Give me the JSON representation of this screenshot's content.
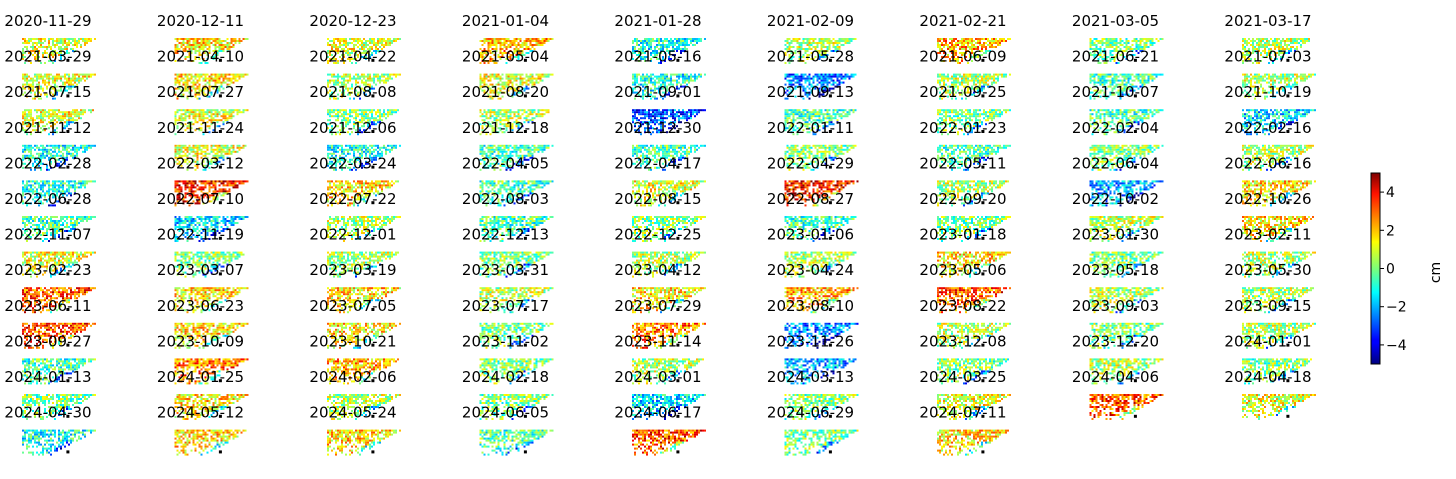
{
  "chart_data": {
    "type": "heatmap",
    "description_type": "small-multiples displacement maps",
    "grid": false,
    "colormap": "jet",
    "colorbar": {
      "label": "cm",
      "range": [
        -5,
        5
      ],
      "ticks": [
        4,
        2,
        0,
        -2,
        -4
      ],
      "tick_labels": [
        "4",
        "2",
        "0",
        "−2",
        "−4"
      ],
      "placement": "right"
    },
    "columns": 9,
    "panels": [
      {
        "date": "2020-11-29",
        "mean_cm": 1.0
      },
      {
        "date": "2020-12-11",
        "mean_cm": 1.5
      },
      {
        "date": "2020-12-23",
        "mean_cm": 1.0
      },
      {
        "date": "2021-01-04",
        "mean_cm": 2.0
      },
      {
        "date": "2021-01-28",
        "mean_cm": -1.0
      },
      {
        "date": "2021-02-09",
        "mean_cm": 0.5
      },
      {
        "date": "2021-02-21",
        "mean_cm": 2.0
      },
      {
        "date": "2021-03-05",
        "mean_cm": 0.0
      },
      {
        "date": "2021-03-17",
        "mean_cm": 0.5
      },
      {
        "date": "2021-03-29",
        "mean_cm": 1.0
      },
      {
        "date": "2021-04-10",
        "mean_cm": 1.5
      },
      {
        "date": "2021-04-22",
        "mean_cm": 0.5
      },
      {
        "date": "2021-05-04",
        "mean_cm": 1.0
      },
      {
        "date": "2021-05-16",
        "mean_cm": -1.0
      },
      {
        "date": "2021-05-28",
        "mean_cm": -2.5
      },
      {
        "date": "2021-06-09",
        "mean_cm": 0.5
      },
      {
        "date": "2021-06-21",
        "mean_cm": -0.5
      },
      {
        "date": "2021-07-03",
        "mean_cm": 0.5
      },
      {
        "date": "2021-07-15",
        "mean_cm": 1.0
      },
      {
        "date": "2021-07-27",
        "mean_cm": 1.0
      },
      {
        "date": "2021-08-08",
        "mean_cm": 0.0
      },
      {
        "date": "2021-08-20",
        "mean_cm": 0.5
      },
      {
        "date": "2021-09-01",
        "mean_cm": -3.0
      },
      {
        "date": "2021-09-13",
        "mean_cm": -0.5
      },
      {
        "date": "2021-09-25",
        "mean_cm": 0.0
      },
      {
        "date": "2021-10-07",
        "mean_cm": -0.5
      },
      {
        "date": "2021-10-19",
        "mean_cm": -1.5
      },
      {
        "date": "2021-11-12",
        "mean_cm": -1.0
      },
      {
        "date": "2021-11-24",
        "mean_cm": 1.0
      },
      {
        "date": "2021-12-06",
        "mean_cm": -1.0
      },
      {
        "date": "2021-12-18",
        "mean_cm": -0.5
      },
      {
        "date": "2021-12-30",
        "mean_cm": -0.5
      },
      {
        "date": "2022-01-11",
        "mean_cm": 0.0
      },
      {
        "date": "2022-01-23",
        "mean_cm": -0.5
      },
      {
        "date": "2022-02-04",
        "mean_cm": 0.0
      },
      {
        "date": "2022-02-16",
        "mean_cm": 0.5
      },
      {
        "date": "2022-02-28",
        "mean_cm": -1.0
      },
      {
        "date": "2022-03-12",
        "mean_cm": 3.5
      },
      {
        "date": "2022-03-24",
        "mean_cm": 1.5
      },
      {
        "date": "2022-04-05",
        "mean_cm": -0.5
      },
      {
        "date": "2022-04-17",
        "mean_cm": 1.0
      },
      {
        "date": "2022-04-29",
        "mean_cm": 3.5
      },
      {
        "date": "2022-05-11",
        "mean_cm": 0.5
      },
      {
        "date": "2022-06-04",
        "mean_cm": -2.0
      },
      {
        "date": "2022-06-16",
        "mean_cm": 1.5
      },
      {
        "date": "2022-06-28",
        "mean_cm": -0.5
      },
      {
        "date": "2022-07-10",
        "mean_cm": -1.5
      },
      {
        "date": "2022-07-22",
        "mean_cm": 0.5
      },
      {
        "date": "2022-08-03",
        "mean_cm": -0.5
      },
      {
        "date": "2022-08-15",
        "mean_cm": 0.0
      },
      {
        "date": "2022-08-27",
        "mean_cm": -0.5
      },
      {
        "date": "2022-09-20",
        "mean_cm": 0.0
      },
      {
        "date": "2022-10-02",
        "mean_cm": 0.5
      },
      {
        "date": "2022-10-26",
        "mean_cm": 1.5
      },
      {
        "date": "2022-11-07",
        "mean_cm": 1.0
      },
      {
        "date": "2022-11-19",
        "mean_cm": 0.0
      },
      {
        "date": "2022-12-01",
        "mean_cm": 0.5
      },
      {
        "date": "2022-12-13",
        "mean_cm": 0.0
      },
      {
        "date": "2022-12-25",
        "mean_cm": 0.5
      },
      {
        "date": "2023-01-06",
        "mean_cm": 0.5
      },
      {
        "date": "2023-01-18",
        "mean_cm": 1.5
      },
      {
        "date": "2023-01-30",
        "mean_cm": 0.0
      },
      {
        "date": "2023-02-11",
        "mean_cm": 0.5
      },
      {
        "date": "2023-02-23",
        "mean_cm": 3.0
      },
      {
        "date": "2023-03-07",
        "mean_cm": 1.5
      },
      {
        "date": "2023-03-19",
        "mean_cm": 1.5
      },
      {
        "date": "2023-03-31",
        "mean_cm": 0.5
      },
      {
        "date": "2023-04-12",
        "mean_cm": 1.5
      },
      {
        "date": "2023-04-24",
        "mean_cm": 2.0
      },
      {
        "date": "2023-05-06",
        "mean_cm": 3.0
      },
      {
        "date": "2023-05-18",
        "mean_cm": 0.5
      },
      {
        "date": "2023-05-30",
        "mean_cm": 0.5
      },
      {
        "date": "2023-06-11",
        "mean_cm": 3.0
      },
      {
        "date": "2023-06-23",
        "mean_cm": 1.5
      },
      {
        "date": "2023-07-05",
        "mean_cm": 1.5
      },
      {
        "date": "2023-07-17",
        "mean_cm": 0.0
      },
      {
        "date": "2023-07-29",
        "mean_cm": 2.5
      },
      {
        "date": "2023-08-10",
        "mean_cm": -2.5
      },
      {
        "date": "2023-08-22",
        "mean_cm": 0.5
      },
      {
        "date": "2023-09-03",
        "mean_cm": 0.0
      },
      {
        "date": "2023-09-15",
        "mean_cm": 0.5
      },
      {
        "date": "2023-09-27",
        "mean_cm": -0.5
      },
      {
        "date": "2023-10-09",
        "mean_cm": 2.5
      },
      {
        "date": "2023-10-21",
        "mean_cm": 2.0
      },
      {
        "date": "2023-11-02",
        "mean_cm": 0.0
      },
      {
        "date": "2023-11-14",
        "mean_cm": 0.5
      },
      {
        "date": "2023-11-26",
        "mean_cm": -2.0
      },
      {
        "date": "2023-12-08",
        "mean_cm": 0.0
      },
      {
        "date": "2023-12-20",
        "mean_cm": 0.5
      },
      {
        "date": "2024-01-01",
        "mean_cm": 0.0
      },
      {
        "date": "2024-01-13",
        "mean_cm": 0.0
      },
      {
        "date": "2024-01-25",
        "mean_cm": 1.5
      },
      {
        "date": "2024-02-06",
        "mean_cm": 0.5
      },
      {
        "date": "2024-02-18",
        "mean_cm": 0.0
      },
      {
        "date": "2024-03-01",
        "mean_cm": -1.5
      },
      {
        "date": "2024-03-13",
        "mean_cm": 0.0
      },
      {
        "date": "2024-03-25",
        "mean_cm": 1.0
      },
      {
        "date": "2024-04-06",
        "mean_cm": 3.0
      },
      {
        "date": "2024-04-18",
        "mean_cm": 1.0
      },
      {
        "date": "2024-04-30",
        "mean_cm": -1.0
      },
      {
        "date": "2024-05-12",
        "mean_cm": 1.5
      },
      {
        "date": "2024-05-24",
        "mean_cm": 1.5
      },
      {
        "date": "2024-06-05",
        "mean_cm": -0.5
      },
      {
        "date": "2024-06-17",
        "mean_cm": 3.0
      },
      {
        "date": "2024-06-29",
        "mean_cm": 0.0
      },
      {
        "date": "2024-07-11",
        "mean_cm": 1.5
      }
    ]
  }
}
